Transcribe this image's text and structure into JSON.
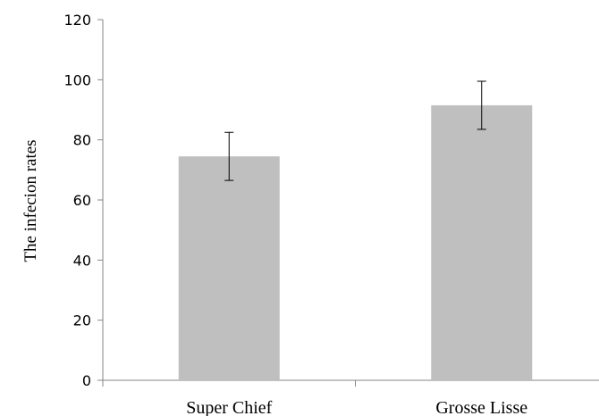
{
  "chart_data": {
    "type": "bar",
    "categories": [
      "Super Chief",
      "Grosse Lisse"
    ],
    "values": [
      74.5,
      91.5
    ],
    "error": [
      8,
      8
    ],
    "xlabel": "",
    "ylabel": "The infecion rates",
    "ylim": [
      0,
      120
    ],
    "yticks": [
      0,
      20,
      40,
      60,
      80,
      100,
      120
    ],
    "grid": false,
    "legend": "none",
    "colors": {
      "bar": "#bfbfbf",
      "axis": "#868686",
      "error_bar": "#000000"
    }
  }
}
